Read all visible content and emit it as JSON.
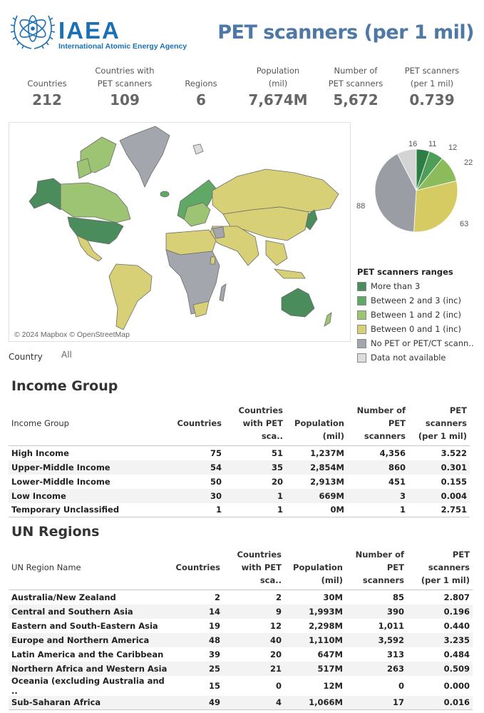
{
  "header": {
    "logo_text": "IAEA",
    "logo_subtitle": "International Atomic Energy Agency",
    "title": "PET scanners (per 1 mil)"
  },
  "kpis": [
    {
      "label_line1": "",
      "label_line2": "Countries",
      "value": "212"
    },
    {
      "label_line1": "Countries with",
      "label_line2": "PET scanners",
      "value": "109"
    },
    {
      "label_line1": "",
      "label_line2": "Regions",
      "value": "6"
    },
    {
      "label_line1": "Population",
      "label_line2": "(mil)",
      "value": "7,674M"
    },
    {
      "label_line1": "Number of",
      "label_line2": "PET scanners",
      "value": "5,672"
    },
    {
      "label_line1": "PET scanners",
      "label_line2": "(per 1 mil)",
      "value": "0.739"
    }
  ],
  "map": {
    "credit": "© 2024 Mapbox © OpenStreetMap"
  },
  "filter": {
    "label": "Country",
    "value": "All"
  },
  "colors": {
    "more_than_3": "#4a8c5c",
    "between_2_3": "#5fa865",
    "between_1_2": "#9cc472",
    "between_0_1": "#d8d077",
    "no_pet": "#a4a6ad",
    "not_available": "#dcdcdc",
    "title_blue": "#4e79a7",
    "logo_blue": "#1a6fb5"
  },
  "chart_data": {
    "type": "pie",
    "title": "PET scanners ranges",
    "categories": [
      "More than 3",
      "Between 2 and 3 (inc)",
      "Between 1 and 2 (inc)",
      "Between 0 and 1 (inc)",
      "No PET or PET/CT scann..",
      "Data not available"
    ],
    "values": [
      11,
      12,
      22,
      63,
      88,
      16
    ],
    "colors": [
      "#2e7d45",
      "#4f9e58",
      "#8bbb5a",
      "#d6ca62",
      "#9a9da3",
      "#d4d4d4"
    ],
    "legend_position": "bottom-right"
  },
  "legend": {
    "title": "PET scanners ranges",
    "items": [
      {
        "label": "More than 3"
      },
      {
        "label": "Between 2 and 3 (inc)"
      },
      {
        "label": "Between 1 and 2 (inc)"
      },
      {
        "label": "Between 0 and 1 (inc)"
      },
      {
        "label": "No PET or PET/CT scann.."
      },
      {
        "label": "Data not available"
      }
    ]
  },
  "income": {
    "title": "Income Group",
    "headers": {
      "name": "Income Group",
      "countries": "Countries",
      "with_pet_1": "Countries",
      "with_pet_2": "with PET sca..",
      "pop_1": "Population",
      "pop_2": "(mil)",
      "num_1": "Number of",
      "num_2": "PET scanners",
      "per_1": "PET scanners",
      "per_2": "(per 1 mil)"
    },
    "rows": [
      [
        "High Income",
        "75",
        "51",
        "1,237M",
        "4,356",
        "3.522"
      ],
      [
        "Upper-Middle Income",
        "54",
        "35",
        "2,854M",
        "860",
        "0.301"
      ],
      [
        "Lower-Middle Income",
        "50",
        "20",
        "2,913M",
        "451",
        "0.155"
      ],
      [
        "Low Income",
        "30",
        "1",
        "669M",
        "3",
        "0.004"
      ],
      [
        "Temporary Unclassified",
        "1",
        "1",
        "0M",
        "1",
        "2.751"
      ]
    ]
  },
  "regions": {
    "title": "UN Regions",
    "headers": {
      "name": "UN Region Name",
      "countries": "Countries",
      "with_pet_1": "Countries",
      "with_pet_2": "with PET sca..",
      "pop_1": "Population",
      "pop_2": "(mil)",
      "num_1": "Number of",
      "num_2": "PET scanners",
      "per_1": "PET scanners",
      "per_2": "(per 1 mil)"
    },
    "rows": [
      [
        "Australia/New Zealand",
        "2",
        "2",
        "30M",
        "85",
        "2.807"
      ],
      [
        "Central and Southern Asia",
        "14",
        "9",
        "1,993M",
        "390",
        "0.196"
      ],
      [
        "Eastern and South-Eastern Asia",
        "19",
        "12",
        "2,298M",
        "1,011",
        "0.440"
      ],
      [
        "Europe and Northern America",
        "48",
        "40",
        "1,110M",
        "3,592",
        "3.235"
      ],
      [
        "Latin America and the Caribbean",
        "39",
        "20",
        "647M",
        "313",
        "0.484"
      ],
      [
        "Northern Africa and Western Asia",
        "25",
        "21",
        "517M",
        "263",
        "0.509"
      ],
      [
        "Oceania (excluding Australia and ..",
        "15",
        "0",
        "12M",
        "0",
        "0.000"
      ],
      [
        "Sub-Saharan Africa",
        "49",
        "4",
        "1,066M",
        "17",
        "0.016"
      ]
    ]
  }
}
